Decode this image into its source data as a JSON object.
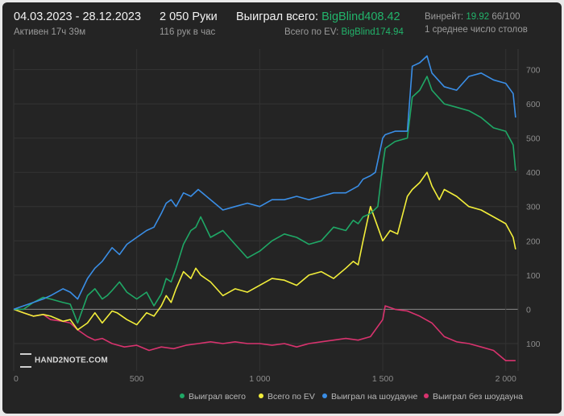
{
  "header": {
    "date_range": "04.03.2023 - 28.12.2023",
    "active": "Активен 17ч 39м",
    "hands": "2 050 Руки",
    "hands_per_hour": "116 рук в час",
    "won_label": "Выиграл всего:",
    "won_value": "BigBlind408.42",
    "ev_label": "Всего по EV:",
    "ev_value": "BigBlind174.94",
    "winrate_label": "Винрейт:",
    "winrate_value": "19.92",
    "winrate_suffix": "66/100",
    "tables": "1 среднее число столов"
  },
  "logo": {
    "text": "HAND2NOTE.COM"
  },
  "colors": {
    "background": "#242424",
    "green": "#1fa866",
    "yellow": "#f2ee3a",
    "blue": "#3a8ee6",
    "pink": "#d8336e"
  },
  "chart_data": {
    "type": "line",
    "xlim": [
      0,
      2050
    ],
    "ylim": [
      -180,
      760
    ],
    "x_ticks": [
      0,
      500,
      1000,
      1500,
      2000
    ],
    "x_tick_labels": [
      "0",
      "500",
      "1 000",
      "1 500",
      "2 000"
    ],
    "y_ticks": [
      700,
      600,
      500,
      400,
      300,
      200,
      100,
      0,
      -100
    ],
    "y_tick_labels": [
      "700",
      "600",
      "500",
      "400",
      "300",
      "200",
      "100",
      "0",
      "100"
    ],
    "grid": true,
    "legend_position": "bottom-right",
    "series": [
      {
        "name": "Выиграл всего",
        "color": "#1fa866",
        "x": [
          0,
          40,
          60,
          80,
          120,
          150,
          200,
          230,
          260,
          300,
          330,
          360,
          380,
          400,
          430,
          460,
          480,
          500,
          540,
          570,
          600,
          620,
          640,
          660,
          690,
          720,
          740,
          760,
          800,
          850,
          900,
          950,
          1000,
          1050,
          1100,
          1150,
          1200,
          1250,
          1300,
          1350,
          1380,
          1400,
          1420,
          1450,
          1480,
          1500,
          1510,
          1550,
          1600,
          1620,
          1650,
          1680,
          1700,
          1750,
          1800,
          1850,
          1900,
          1950,
          2000,
          2030,
          2040
        ],
        "y": [
          0,
          0,
          10,
          20,
          35,
          30,
          20,
          15,
          -40,
          40,
          60,
          30,
          40,
          55,
          80,
          50,
          40,
          30,
          50,
          10,
          45,
          90,
          80,
          120,
          190,
          230,
          240,
          270,
          210,
          230,
          190,
          150,
          170,
          200,
          220,
          210,
          190,
          200,
          240,
          230,
          260,
          250,
          270,
          280,
          300,
          420,
          470,
          490,
          500,
          620,
          640,
          680,
          640,
          600,
          590,
          580,
          560,
          530,
          520,
          480,
          405
        ]
      },
      {
        "name": "Всего по EV",
        "color": "#f2ee3a",
        "x": [
          0,
          40,
          80,
          120,
          150,
          200,
          230,
          260,
          300,
          330,
          360,
          400,
          420,
          460,
          500,
          540,
          570,
          600,
          620,
          640,
          660,
          690,
          720,
          740,
          760,
          800,
          850,
          900,
          950,
          1000,
          1050,
          1100,
          1150,
          1200,
          1250,
          1300,
          1350,
          1380,
          1400,
          1420,
          1450,
          1470,
          1500,
          1530,
          1560,
          1600,
          1620,
          1650,
          1680,
          1700,
          1730,
          1750,
          1800,
          1850,
          1900,
          1950,
          2000,
          2030,
          2040
        ],
        "y": [
          0,
          -10,
          -20,
          -15,
          -20,
          -35,
          -30,
          -60,
          -40,
          -10,
          -40,
          -5,
          -10,
          -30,
          -45,
          -10,
          -20,
          10,
          40,
          20,
          60,
          110,
          90,
          120,
          100,
          80,
          40,
          60,
          50,
          70,
          90,
          85,
          70,
          100,
          110,
          90,
          120,
          140,
          130,
          200,
          300,
          260,
          200,
          230,
          220,
          330,
          350,
          370,
          400,
          360,
          320,
          350,
          330,
          300,
          290,
          270,
          250,
          210,
          175
        ]
      },
      {
        "name": "Выиграл на шоудауне",
        "color": "#3a8ee6",
        "x": [
          0,
          40,
          80,
          120,
          150,
          200,
          230,
          260,
          300,
          330,
          360,
          400,
          430,
          460,
          500,
          540,
          570,
          600,
          620,
          640,
          660,
          690,
          720,
          750,
          800,
          850,
          900,
          950,
          1000,
          1050,
          1100,
          1150,
          1200,
          1250,
          1300,
          1350,
          1400,
          1420,
          1450,
          1470,
          1500,
          1510,
          1550,
          1600,
          1620,
          1650,
          1680,
          1700,
          1750,
          1800,
          1850,
          1900,
          1950,
          2000,
          2030,
          2040
        ],
        "y": [
          0,
          10,
          20,
          30,
          40,
          60,
          50,
          30,
          90,
          120,
          140,
          180,
          160,
          190,
          210,
          230,
          240,
          280,
          310,
          320,
          300,
          340,
          330,
          350,
          320,
          290,
          300,
          310,
          300,
          320,
          320,
          330,
          320,
          330,
          340,
          340,
          360,
          380,
          390,
          400,
          500,
          510,
          520,
          520,
          710,
          720,
          740,
          690,
          650,
          640,
          680,
          690,
          670,
          660,
          630,
          560
        ]
      },
      {
        "name": "Выиграл без шоудауна",
        "color": "#d8336e",
        "x": [
          0,
          40,
          80,
          120,
          150,
          200,
          230,
          260,
          300,
          330,
          360,
          400,
          450,
          500,
          550,
          600,
          650,
          700,
          750,
          800,
          850,
          900,
          950,
          1000,
          1050,
          1100,
          1150,
          1200,
          1250,
          1300,
          1350,
          1400,
          1450,
          1500,
          1510,
          1550,
          1600,
          1650,
          1700,
          1750,
          1800,
          1850,
          1900,
          1950,
          2000,
          2040
        ],
        "y": [
          0,
          -10,
          -20,
          -15,
          -30,
          -35,
          -40,
          -60,
          -80,
          -90,
          -85,
          -100,
          -110,
          -105,
          -120,
          -110,
          -115,
          -105,
          -100,
          -95,
          -100,
          -95,
          -100,
          -100,
          -105,
          -100,
          -110,
          -100,
          -95,
          -90,
          -85,
          -90,
          -80,
          -30,
          10,
          0,
          -5,
          -20,
          -40,
          -80,
          -95,
          -100,
          -110,
          -120,
          -150,
          -150
        ]
      }
    ]
  }
}
